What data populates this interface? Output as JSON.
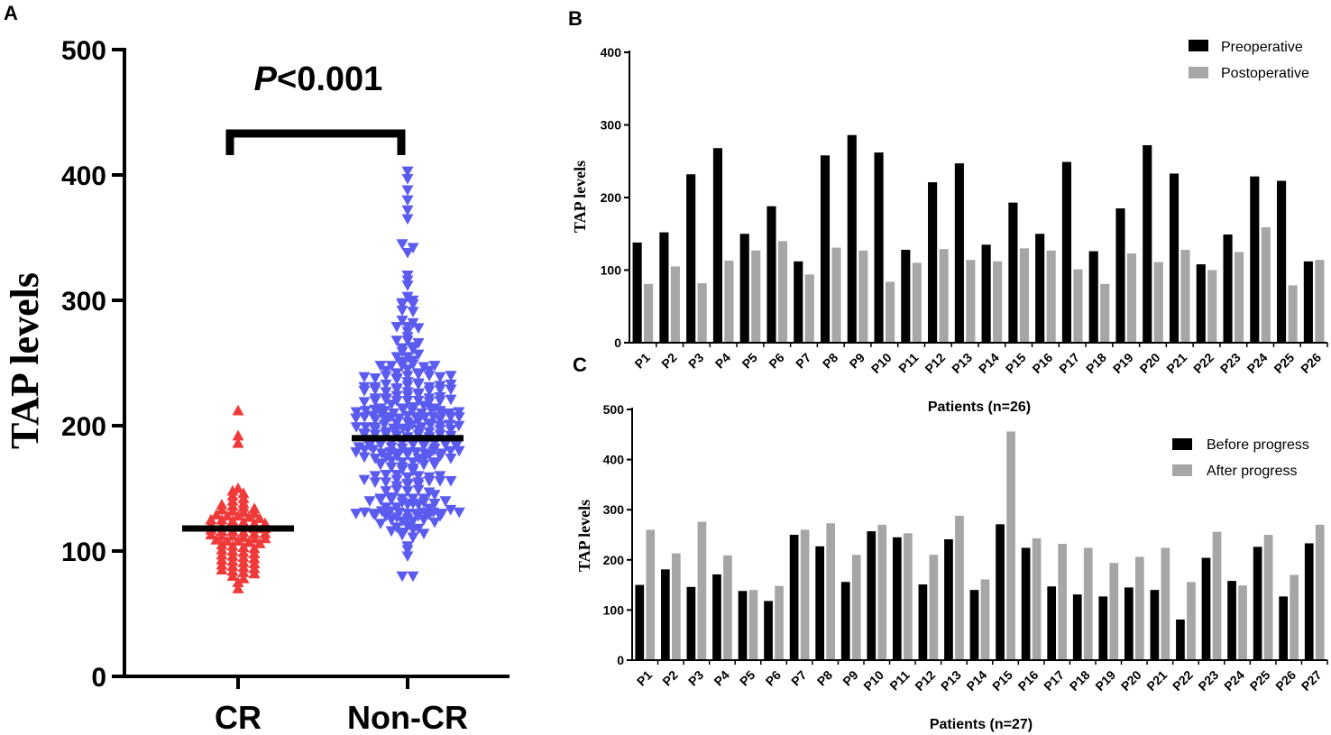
{
  "chart_data": [
    {
      "panel": "A",
      "type": "scatter",
      "ylabel": "TAP levels",
      "ylim": [
        0,
        500
      ],
      "yticks": [
        "0",
        "100",
        "200",
        "300",
        "400",
        "500"
      ],
      "categories": [
        "CR",
        "Non-CR"
      ],
      "annotation": "P<0.001",
      "annotation_italic": "P",
      "annotation_rest": "<0.001",
      "groups": [
        {
          "name": "CR",
          "color": "#f03a3a",
          "marker": "triangle-up",
          "n": 80,
          "mean": 118,
          "min": 70,
          "max": 212,
          "values": [
            212,
            192,
            186,
            150,
            148,
            146,
            144,
            142,
            140,
            138,
            137,
            136,
            135,
            134,
            133,
            132,
            131,
            130,
            129,
            128,
            128,
            127,
            126,
            125,
            125,
            124,
            123,
            122,
            122,
            121,
            120,
            120,
            119,
            118,
            118,
            117,
            116,
            116,
            115,
            114,
            114,
            113,
            112,
            112,
            111,
            110,
            110,
            109,
            108,
            108,
            107,
            106,
            105,
            104,
            103,
            102,
            101,
            100,
            99,
            98,
            97,
            96,
            95,
            94,
            93,
            92,
            91,
            90,
            89,
            88,
            87,
            86,
            85,
            84,
            83,
            82,
            80,
            78,
            75,
            70
          ]
        },
        {
          "name": "Non-CR",
          "color": "#5b5bf0",
          "marker": "triangle-down",
          "n": 300,
          "mean": 190,
          "min": 80,
          "max": 403
        }
      ]
    },
    {
      "panel": "B",
      "type": "bar",
      "ylabel": "TAP levels",
      "xlabel": "Patients (n=26)",
      "ylim": [
        0,
        400
      ],
      "yticks": [
        "0",
        "100",
        "200",
        "300",
        "400"
      ],
      "categories": [
        "P1",
        "P2",
        "P3",
        "P4",
        "P5",
        "P6",
        "P7",
        "P8",
        "P9",
        "P10",
        "P11",
        "P12",
        "P13",
        "P14",
        "P15",
        "P16",
        "P17",
        "P18",
        "P19",
        "P20",
        "P21",
        "P22",
        "P23",
        "P24",
        "P25",
        "P26"
      ],
      "series": [
        {
          "name": "Preoperative",
          "color": "#000000",
          "values": [
            138,
            152,
            232,
            268,
            150,
            188,
            112,
            258,
            286,
            262,
            128,
            221,
            247,
            135,
            193,
            150,
            249,
            126,
            185,
            272,
            233,
            108,
            149,
            229,
            223,
            112
          ]
        },
        {
          "name": "Postoperative",
          "color": "#a6a6a8",
          "values": [
            81,
            105,
            82,
            113,
            127,
            140,
            94,
            131,
            127,
            84,
            110,
            129,
            114,
            112,
            130,
            127,
            101,
            81,
            123,
            111,
            128,
            100,
            125,
            159,
            79,
            114
          ]
        }
      ],
      "legend": "top-right"
    },
    {
      "panel": "C",
      "type": "bar",
      "ylabel": "TAP levels",
      "xlabel": "Patients (n=27)",
      "ylim": [
        0,
        500
      ],
      "yticks": [
        "0",
        "100",
        "200",
        "300",
        "400",
        "500"
      ],
      "categories": [
        "P1",
        "P2",
        "P3",
        "P4",
        "P5",
        "P6",
        "P7",
        "P8",
        "P9",
        "P10",
        "P11",
        "P12",
        "P13",
        "P14",
        "P15",
        "P16",
        "P17",
        "P18",
        "P19",
        "P20",
        "P21",
        "P22",
        "P23",
        "P24",
        "P25",
        "P26",
        "P27"
      ],
      "series": [
        {
          "name": "Before progress",
          "color": "#000000",
          "values": [
            150,
            181,
            146,
            171,
            138,
            118,
            250,
            227,
            156,
            257,
            245,
            151,
            241,
            140,
            271,
            224,
            147,
            131,
            127,
            145,
            140,
            81,
            204,
            158,
            226,
            127,
            233
          ]
        },
        {
          "name": "After progress",
          "color": "#a6a6a8",
          "values": [
            260,
            213,
            276,
            209,
            140,
            148,
            260,
            273,
            210,
            270,
            253,
            210,
            288,
            161,
            456,
            243,
            232,
            224,
            194,
            206,
            224,
            156,
            256,
            149,
            250,
            170,
            270
          ]
        }
      ],
      "legend": "top-right"
    }
  ]
}
